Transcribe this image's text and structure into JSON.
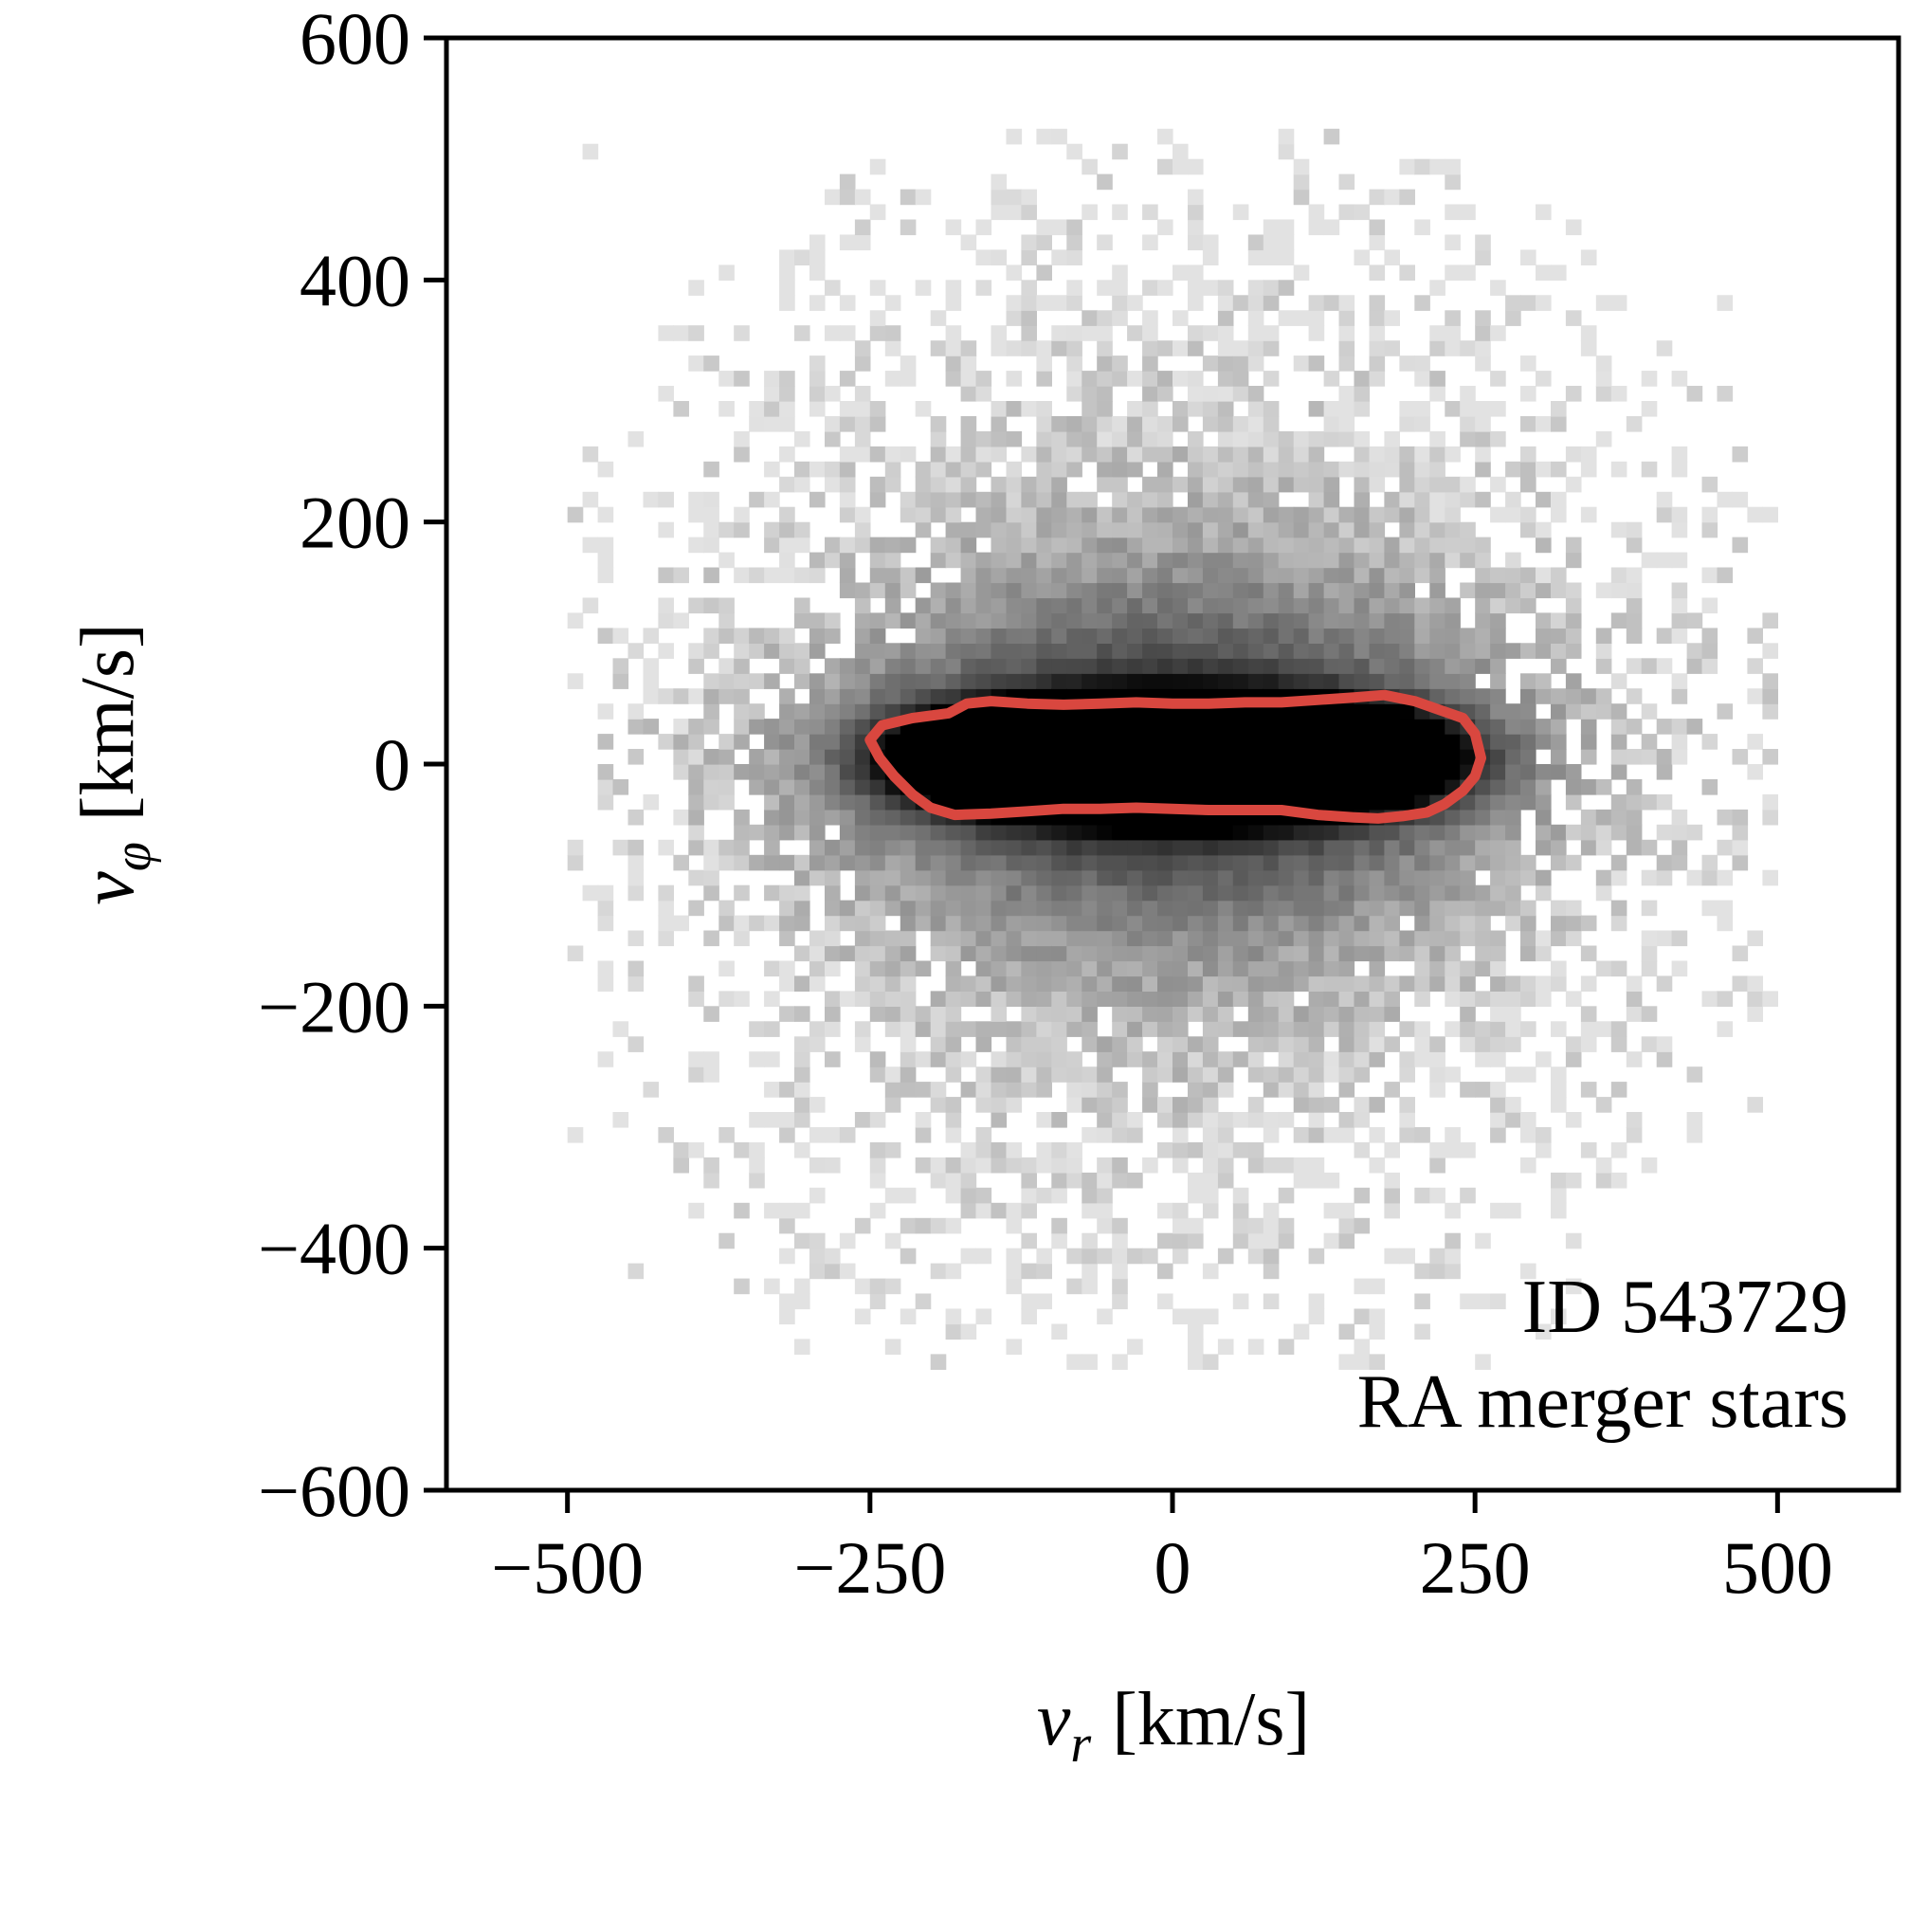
{
  "chart_data": {
    "type": "heatmap",
    "xlabel": {
      "main": "v",
      "sub": "r",
      "unit": "[km/s]"
    },
    "ylabel": {
      "main": "v",
      "sub": "φ",
      "unit": "[km/s]"
    },
    "xlim": [
      -600,
      600
    ],
    "ylim": [
      -600,
      600
    ],
    "xticks": [
      -500,
      -250,
      0,
      250,
      500
    ],
    "xtick_labels": [
      "−500",
      "−250",
      "0",
      "250",
      "500"
    ],
    "yticks": [
      600,
      400,
      200,
      0,
      -200,
      -400,
      -600
    ],
    "ytick_labels": [
      "600",
      "400",
      "200",
      "0",
      "−200",
      "−400",
      "−600"
    ],
    "grid": false,
    "colormap": "greys (white = low density, black = high density)",
    "distribution": {
      "dense_core_vr_range": [
        -250,
        250
      ],
      "dense_core_vphi_range": [
        -40,
        50
      ],
      "outer_extent_vr": [
        -480,
        480
      ],
      "outer_extent_vphi": [
        -480,
        500
      ]
    },
    "contour": {
      "color": "#d9473f",
      "points": [
        [
          -250,
          20
        ],
        [
          -240,
          32
        ],
        [
          -215,
          38
        ],
        [
          -185,
          42
        ],
        [
          -170,
          50
        ],
        [
          -150,
          52
        ],
        [
          -120,
          50
        ],
        [
          -90,
          49
        ],
        [
          -60,
          50
        ],
        [
          -30,
          51
        ],
        [
          0,
          50
        ],
        [
          30,
          50
        ],
        [
          60,
          51
        ],
        [
          90,
          51
        ],
        [
          120,
          53
        ],
        [
          150,
          55
        ],
        [
          175,
          57
        ],
        [
          200,
          52
        ],
        [
          220,
          45
        ],
        [
          240,
          38
        ],
        [
          250,
          25
        ],
        [
          255,
          5
        ],
        [
          250,
          -10
        ],
        [
          240,
          -22
        ],
        [
          225,
          -33
        ],
        [
          210,
          -40
        ],
        [
          190,
          -43
        ],
        [
          170,
          -45
        ],
        [
          150,
          -44
        ],
        [
          120,
          -42
        ],
        [
          90,
          -38
        ],
        [
          60,
          -38
        ],
        [
          30,
          -38
        ],
        [
          0,
          -37
        ],
        [
          -30,
          -36
        ],
        [
          -60,
          -37
        ],
        [
          -90,
          -37
        ],
        [
          -120,
          -39
        ],
        [
          -150,
          -41
        ],
        [
          -180,
          -42
        ],
        [
          -200,
          -36
        ],
        [
          -215,
          -25
        ],
        [
          -230,
          -10
        ],
        [
          -242,
          5
        ]
      ]
    },
    "annotations": [
      "ID 543729",
      "RA merger stars"
    ]
  }
}
